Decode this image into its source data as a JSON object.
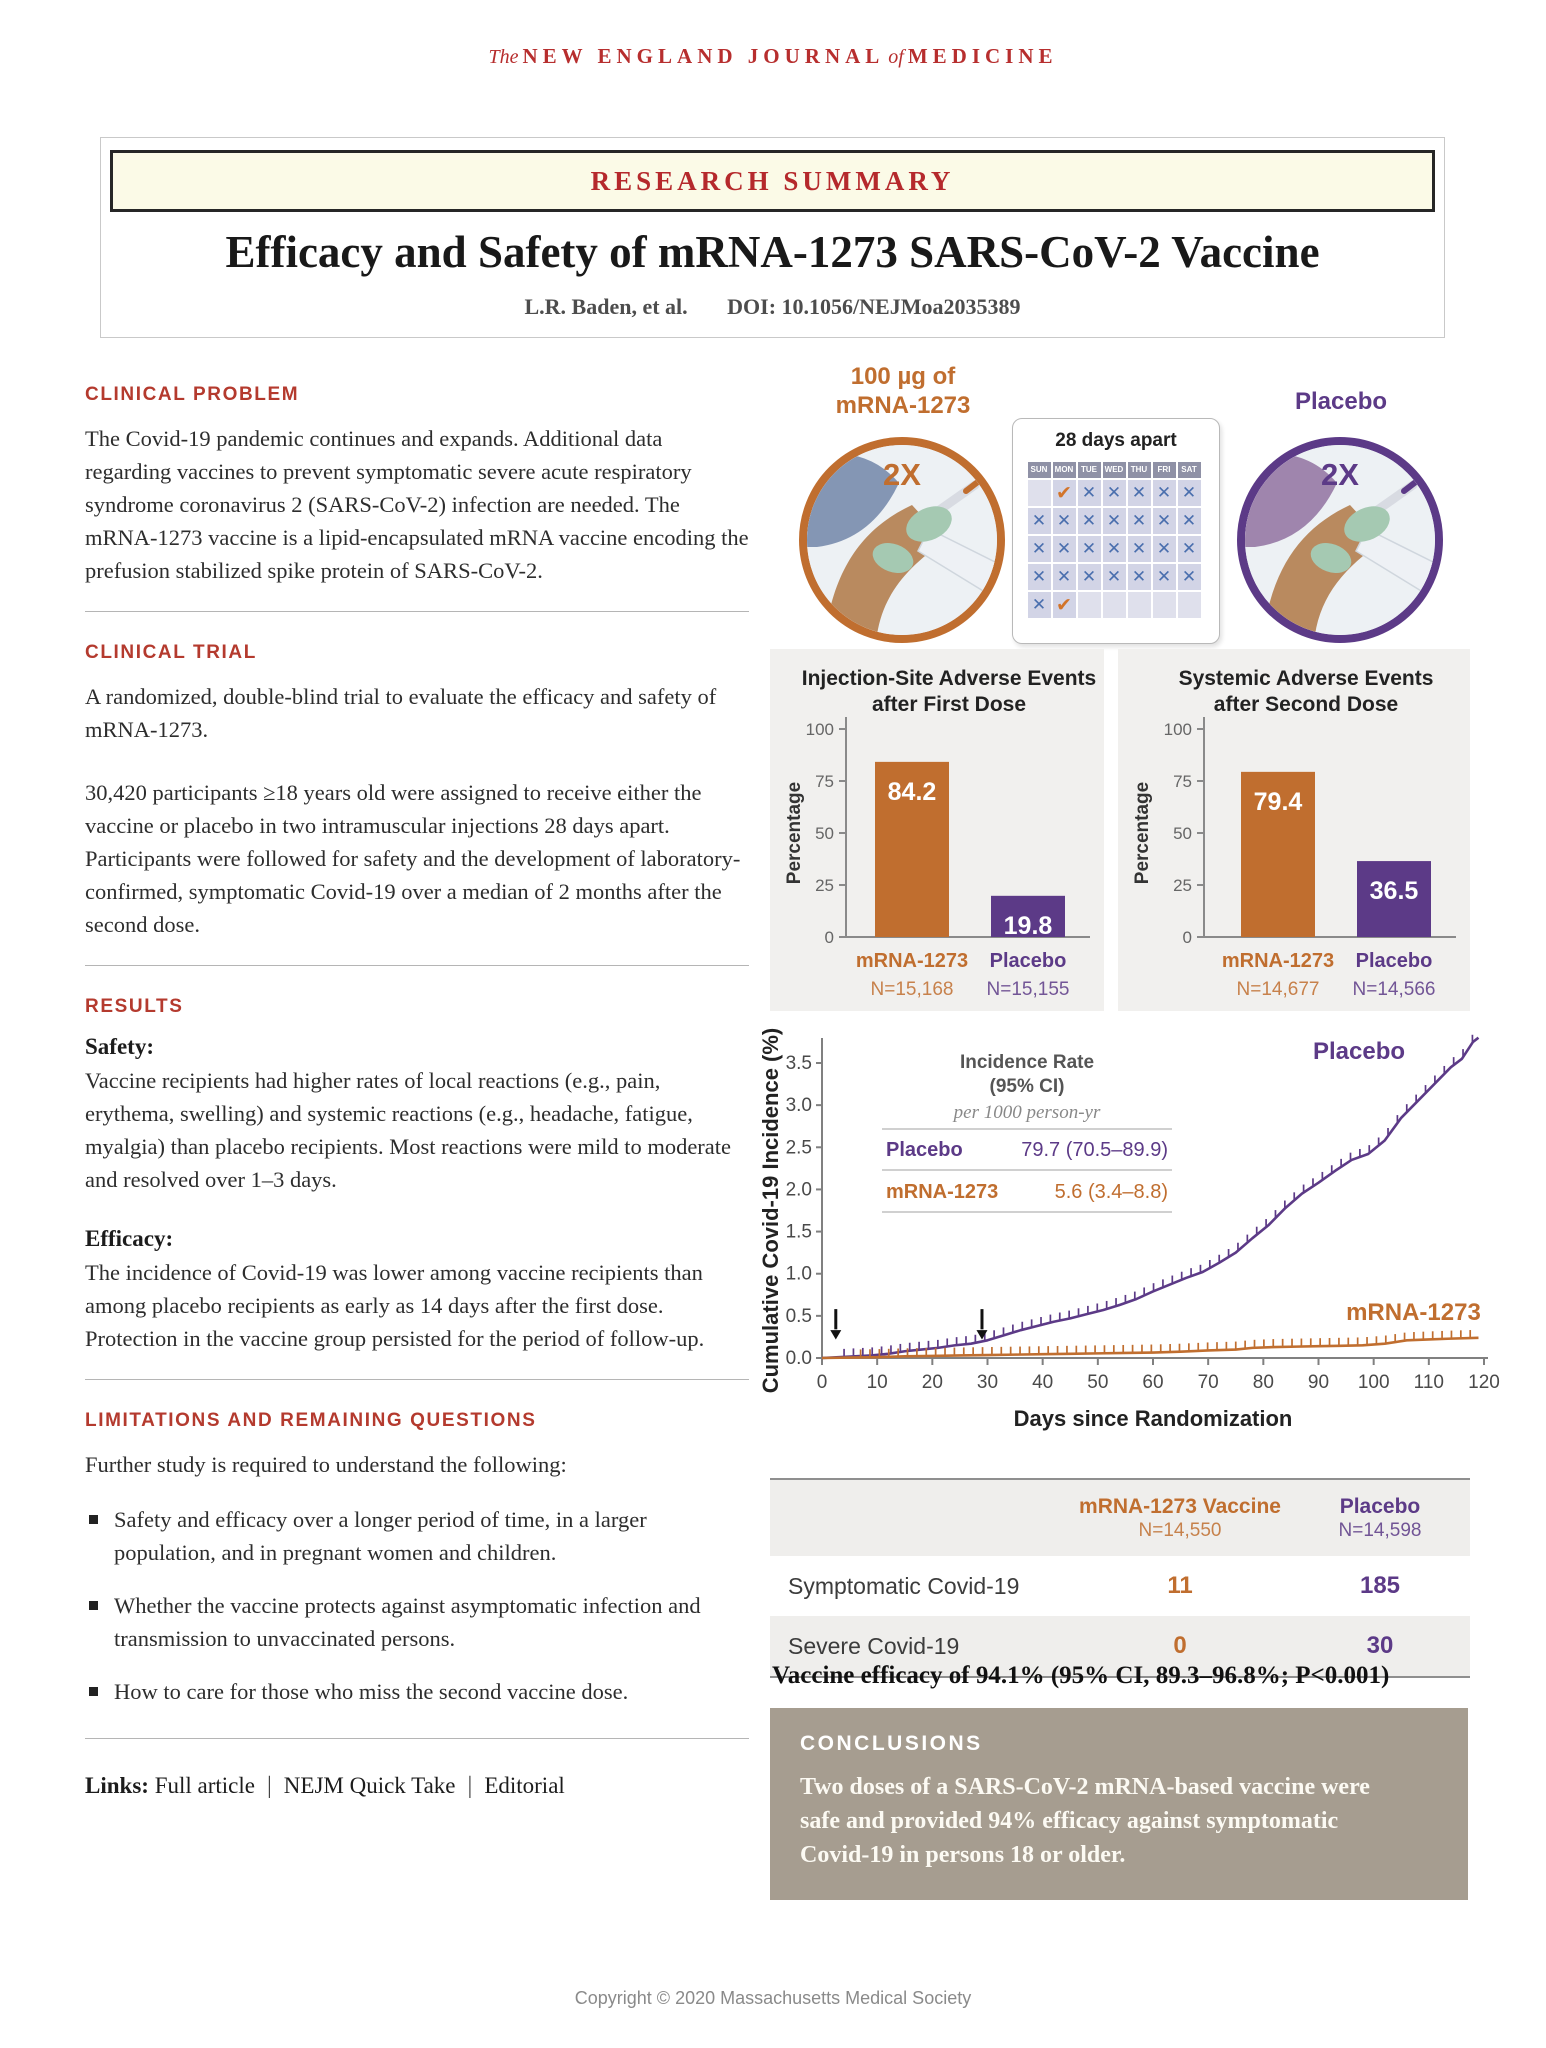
{
  "masthead": {
    "prefix": "The",
    "part1": "NEW ENGLAND JOURNAL",
    "of": "of",
    "part2": "MEDICINE"
  },
  "banner": "RESEARCH SUMMARY",
  "title": "Efficacy and Safety of mRNA-1273 SARS-CoV-2 Vaccine",
  "byline": {
    "authors": "L.R. Baden, et al.",
    "doi": "DOI: 10.1056/NEJMoa2035389"
  },
  "left": {
    "clinical_problem": {
      "heading": "CLINICAL PROBLEM",
      "body": "The Covid-19 pandemic continues and expands. Additional data regarding vaccines to prevent symptomatic severe acute respiratory syndrome coronavirus 2 (SARS-CoV-2) infection are needed. The mRNA-1273 vaccine is a lipid-encapsulated mRNA vaccine encoding the prefusion stabilized spike protein of SARS-CoV-2."
    },
    "clinical_trial": {
      "heading": "CLINICAL TRIAL",
      "p1": "A randomized, double-blind trial to evaluate the efficacy and safety of mRNA-1273.",
      "p2": "30,420 participants ≥18 years old were assigned to receive either the vaccine or placebo in two intramuscular injections 28 days apart. Participants were followed for safety and the development of laboratory-confirmed, symptomatic Covid-19 over a median of 2 months after the second dose."
    },
    "results": {
      "heading": "RESULTS",
      "safety_label": "Safety:",
      "safety": "Vaccine recipients had higher rates of local reactions (e.g., pain, erythema, swelling) and systemic reactions (e.g., headache, fatigue, myalgia) than placebo recipients. Most reactions were mild to moderate and resolved over 1–3 days.",
      "efficacy_label": "Efficacy:",
      "efficacy": "The incidence of Covid-19 was lower among vaccine recipients than among placebo recipients as early as 14 days after the first dose. Protection in the vaccine group persisted for the period of follow-up."
    },
    "limitations": {
      "heading": "LIMITATIONS AND REMAINING QUESTIONS",
      "intro": "Further study is required to understand the following:",
      "bullets": [
        "Safety and efficacy over a longer period of time, in a larger population, and in pregnant women and children.",
        "Whether the vaccine protects against asymptomatic infection and transmission to unvaccinated persons.",
        "How to care for those who miss the second vaccine dose."
      ]
    },
    "links": {
      "label": "Links:",
      "items": [
        "Full article",
        "NEJM Quick Take",
        "Editorial"
      ]
    }
  },
  "illustration": {
    "vaccine_label_line1": "100 µg of",
    "vaccine_label_line2": "mRNA-1273",
    "vaccine_doses": "2X",
    "placebo_label": "Placebo",
    "placebo_doses": "2X",
    "calendar": {
      "title": "28 days apart",
      "day_headers": [
        "SUN",
        "MON",
        "TUE",
        "WED",
        "THU",
        "FRI",
        "SAT"
      ],
      "grid": [
        [
          "",
          "check",
          "x",
          "x",
          "x",
          "x",
          "x"
        ],
        [
          "x",
          "x",
          "x",
          "x",
          "x",
          "x",
          "x"
        ],
        [
          "x",
          "x",
          "x",
          "x",
          "x",
          "x",
          "x"
        ],
        [
          "x",
          "x",
          "x",
          "x",
          "x",
          "x",
          "x"
        ],
        [
          "x",
          "check",
          "",
          "",
          "",
          "",
          ""
        ]
      ]
    }
  },
  "chart_data": [
    {
      "type": "bar",
      "title": "Injection-Site Adverse Events after First Dose",
      "title_lines": [
        "Injection-Site Adverse Events",
        "after First Dose"
      ],
      "ylabel": "Percentage",
      "ylim": [
        0,
        100
      ],
      "yticks": [
        0,
        25,
        50,
        75,
        100
      ],
      "categories": [
        "mRNA-1273",
        "Placebo"
      ],
      "ns": [
        "N=15,168",
        "N=15,155"
      ],
      "values": [
        84.2,
        19.8
      ],
      "bar_colors": [
        "#c06e2f",
        "#5c3a87"
      ]
    },
    {
      "type": "bar",
      "title": "Systemic Adverse Events after Second Dose",
      "title_lines": [
        "Systemic Adverse Events",
        "after Second Dose"
      ],
      "ylabel": "Percentage",
      "ylim": [
        0,
        100
      ],
      "yticks": [
        0,
        25,
        50,
        75,
        100
      ],
      "categories": [
        "mRNA-1273",
        "Placebo"
      ],
      "ns": [
        "N=14,677",
        "N=14,566"
      ],
      "values": [
        79.4,
        36.5
      ],
      "bar_colors": [
        "#c06e2f",
        "#5c3a87"
      ]
    },
    {
      "type": "line",
      "xlabel": "Days since Randomization",
      "ylabel": "Cumulative Covid-19 Incidence (%)",
      "xlim": [
        0,
        120
      ],
      "ylim": [
        0,
        3.9
      ],
      "xticks": [
        0,
        10,
        20,
        30,
        40,
        50,
        60,
        70,
        80,
        90,
        100,
        110,
        120
      ],
      "yticks": [
        0.0,
        0.5,
        1.0,
        1.5,
        2.0,
        2.5,
        3.0,
        3.5
      ],
      "grid": false,
      "legend": {
        "title_line1": "Incidence Rate",
        "title_line2": "(95% CI)",
        "subtitle": "per 1000 person-yr",
        "rows": [
          {
            "name": "Placebo",
            "value": "79.7 (70.5–89.9)",
            "color": "#5c3a87"
          },
          {
            "name": "mRNA-1273",
            "value": "5.6 (3.4–8.8)",
            "color": "#c06e2f"
          }
        ]
      },
      "annotations": {
        "dose_arrow_days": [
          2.5,
          29
        ]
      },
      "series": [
        {
          "name": "Placebo",
          "color": "#5c3a87",
          "label_day": 89,
          "label_value": 3.55,
          "points": [
            [
              0,
              0
            ],
            [
              3,
              0.01
            ],
            [
              6,
              0.02
            ],
            [
              9,
              0.03
            ],
            [
              12,
              0.05
            ],
            [
              15,
              0.08
            ],
            [
              18,
              0.1
            ],
            [
              21,
              0.12
            ],
            [
              24,
              0.15
            ],
            [
              27,
              0.17
            ],
            [
              30,
              0.21
            ],
            [
              33,
              0.27
            ],
            [
              36,
              0.33
            ],
            [
              39,
              0.38
            ],
            [
              42,
              0.43
            ],
            [
              45,
              0.47
            ],
            [
              48,
              0.52
            ],
            [
              51,
              0.57
            ],
            [
              54,
              0.63
            ],
            [
              57,
              0.7
            ],
            [
              60,
              0.79
            ],
            [
              63,
              0.87
            ],
            [
              66,
              0.95
            ],
            [
              69,
              1.02
            ],
            [
              72,
              1.13
            ],
            [
              75,
              1.25
            ],
            [
              78,
              1.42
            ],
            [
              81,
              1.58
            ],
            [
              84,
              1.78
            ],
            [
              87,
              1.95
            ],
            [
              90,
              2.08
            ],
            [
              93,
              2.22
            ],
            [
              96,
              2.35
            ],
            [
              99,
              2.42
            ],
            [
              102,
              2.58
            ],
            [
              105,
              2.85
            ],
            [
              108,
              3.05
            ],
            [
              111,
              3.25
            ],
            [
              114,
              3.45
            ],
            [
              116,
              3.55
            ],
            [
              118,
              3.75
            ],
            [
              119,
              3.8
            ]
          ]
        },
        {
          "name": "mRNA-1273",
          "color": "#c06e2f",
          "label_day": 95,
          "label_value": 0.45,
          "points": [
            [
              0,
              0
            ],
            [
              5,
              0.005
            ],
            [
              10,
              0.01
            ],
            [
              15,
              0.02
            ],
            [
              20,
              0.025
            ],
            [
              25,
              0.03
            ],
            [
              30,
              0.035
            ],
            [
              35,
              0.04
            ],
            [
              40,
              0.045
            ],
            [
              45,
              0.05
            ],
            [
              50,
              0.055
            ],
            [
              55,
              0.06
            ],
            [
              60,
              0.065
            ],
            [
              65,
              0.075
            ],
            [
              70,
              0.09
            ],
            [
              75,
              0.1
            ],
            [
              78,
              0.12
            ],
            [
              82,
              0.13
            ],
            [
              86,
              0.135
            ],
            [
              90,
              0.14
            ],
            [
              94,
              0.145
            ],
            [
              98,
              0.15
            ],
            [
              102,
              0.17
            ],
            [
              106,
              0.21
            ],
            [
              110,
              0.22
            ],
            [
              114,
              0.23
            ],
            [
              119,
              0.24
            ]
          ]
        }
      ]
    }
  ],
  "outcome_table": {
    "col_headers": [
      {
        "label": "mRNA-1273 Vaccine",
        "n": "N=14,550",
        "color": "#c06e2f"
      },
      {
        "label": "Placebo",
        "n": "N=14,598",
        "color": "#5c3a87"
      }
    ],
    "rows": [
      {
        "label": "Symptomatic Covid-19",
        "vaccine": "11",
        "placebo": "185"
      },
      {
        "label": "Severe Covid-19",
        "vaccine": "0",
        "placebo": "30"
      }
    ]
  },
  "efficacy_statement": "Vaccine efficacy of 94.1% (95% CI, 89.3–96.8%; P<0.001)",
  "conclusions": {
    "heading": "CONCLUSIONS",
    "body": "Two doses of a SARS-CoV-2 mRNA-based vaccine were safe and provided 94% efficacy against symptomatic Covid-19 in persons 18 or older."
  },
  "footer": "Copyright © 2020 Massachusetts Medical Society",
  "colors": {
    "orange": "#c06e2f",
    "purple": "#5c3a87",
    "red": "#b43a2e",
    "taupe": "#a69d90",
    "panel_bg": "#f1f0ee",
    "banner_bg": "#fbfae7",
    "axis": "#808080",
    "skin": "#b98a5f",
    "glove": "#a5c9b2",
    "shirt_vaccine": "#8496b4",
    "shirt_placebo": "#9f85ad"
  }
}
